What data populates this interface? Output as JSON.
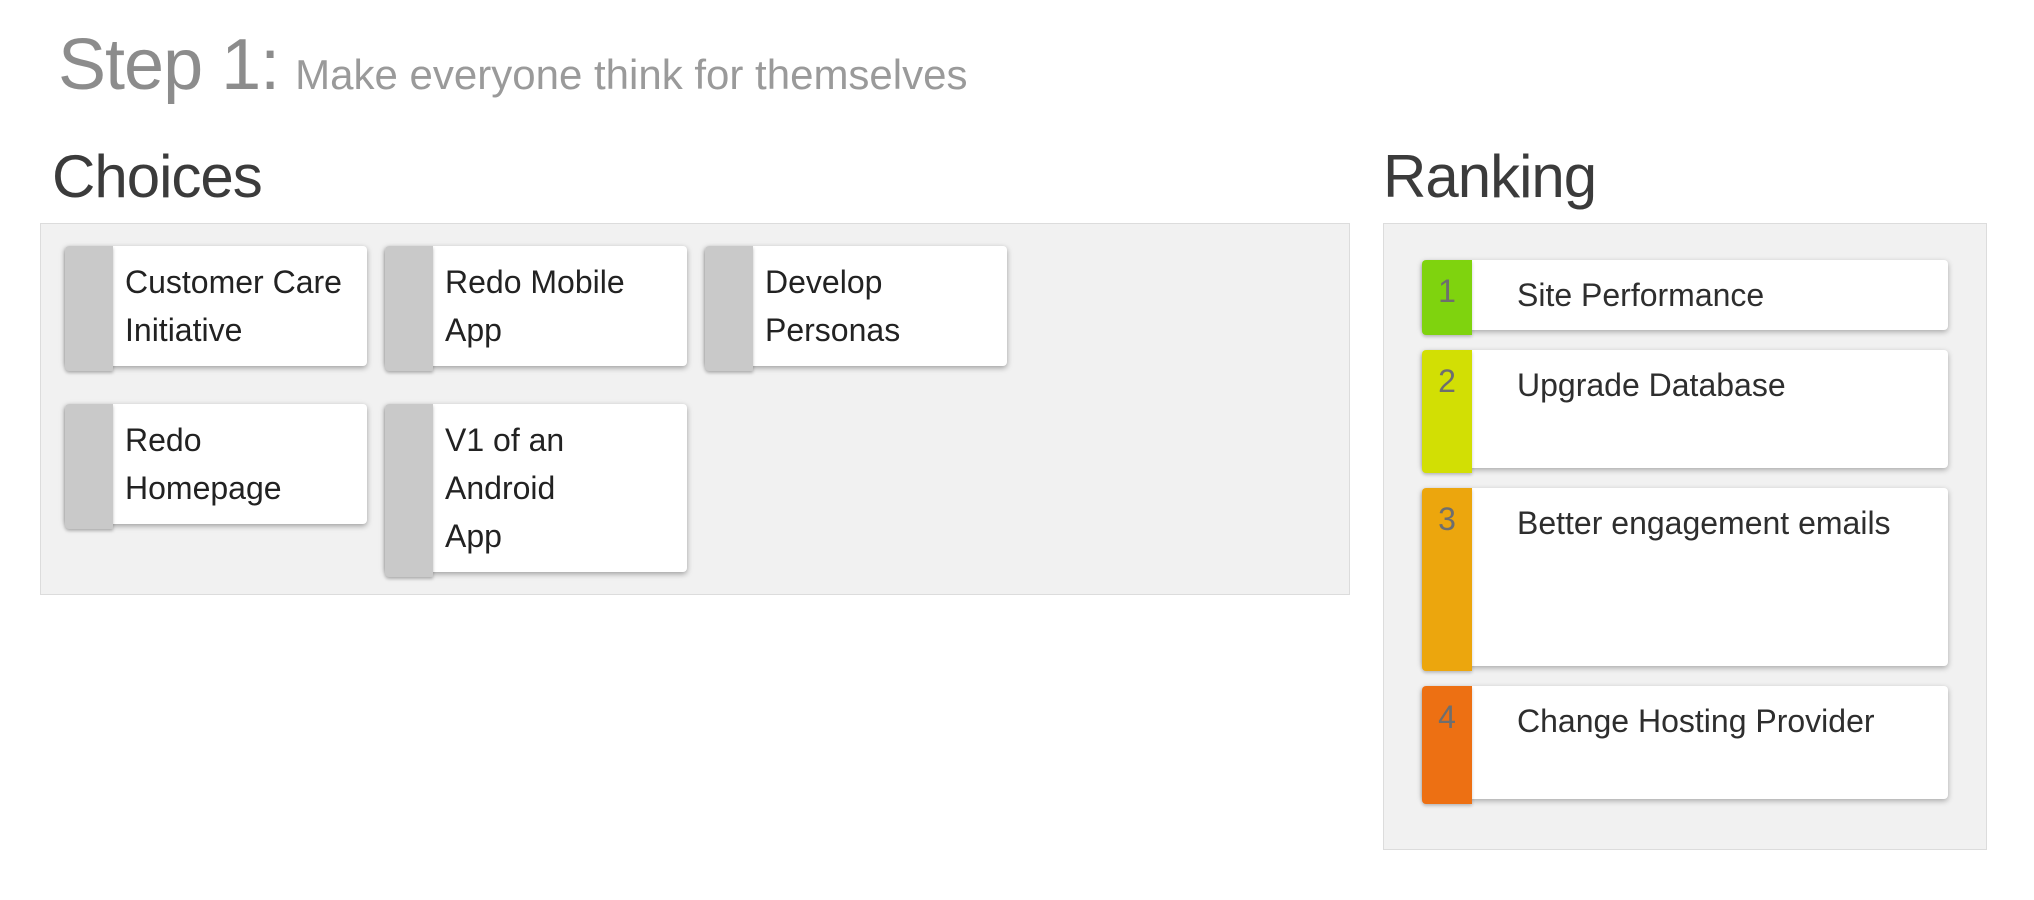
{
  "header": {
    "step_label": "Step 1:",
    "step_subtitle": "Make everyone think for themselves"
  },
  "choices": {
    "title": "Choices",
    "cards": [
      {
        "label": "Customer Care Initiative",
        "lines": [
          "Customer Care",
          "Initiative"
        ]
      },
      {
        "label": "Redo Mobile App",
        "lines": [
          "Redo Mobile App"
        ]
      },
      {
        "label": "Develop Personas",
        "lines": [
          "Develop",
          "Personas"
        ]
      },
      {
        "label": "Redo Homepage",
        "lines": [
          "Redo Homepage"
        ]
      },
      {
        "label": "V1 of an Android App",
        "lines": [
          "V1 of an Android",
          "App"
        ]
      }
    ]
  },
  "ranking": {
    "title": "Ranking",
    "items": [
      {
        "rank": "1",
        "label": "Site Performance",
        "color": "#7fd30e"
      },
      {
        "rank": "2",
        "label": "Upgrade Database",
        "color": "#d2df04"
      },
      {
        "rank": "3",
        "label": "Better engagement emails",
        "color": "#eca60d"
      },
      {
        "rank": "4",
        "label": "Change Hosting Provider",
        "color": "#ed7013"
      }
    ]
  },
  "colors": {
    "choice_handle": "#c9c9c9",
    "panel_background": "#f1f1f1",
    "panel_border": "#dcdcdc"
  }
}
